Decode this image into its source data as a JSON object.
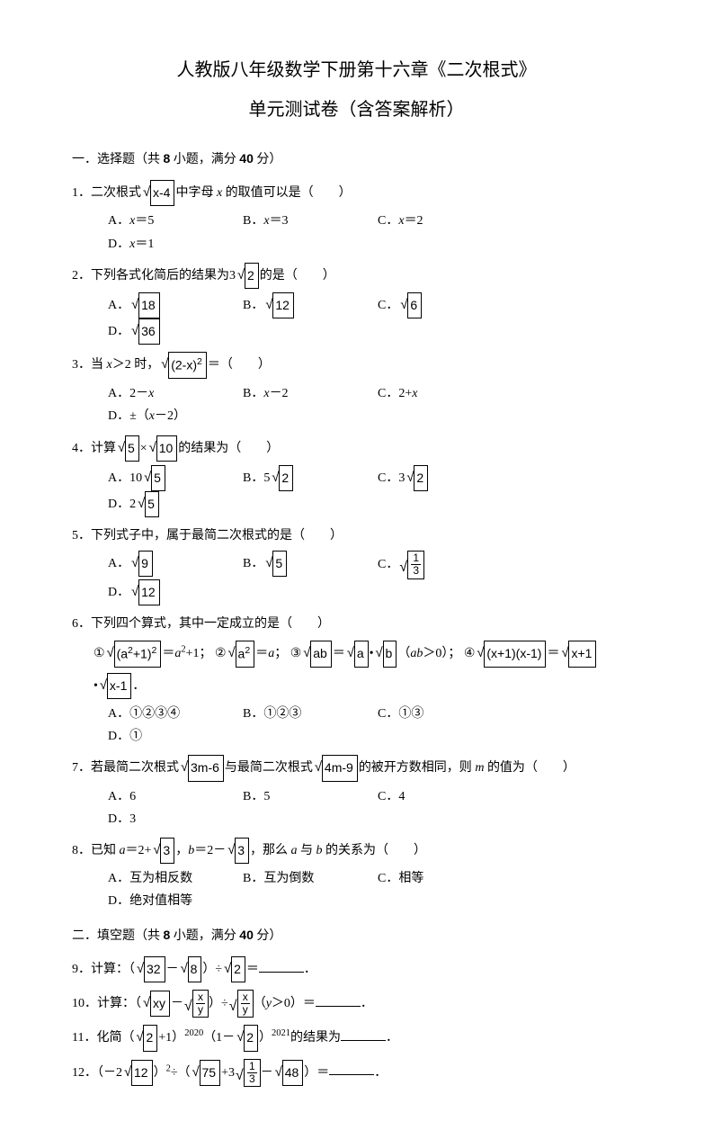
{
  "header": {
    "title": "人教版八年级数学下册第十六章《二次根式》",
    "subtitle": "单元测试卷（含答案解析）"
  },
  "section1": {
    "heading_prefix": "一．选择题（共 ",
    "heading_count1": "8",
    "heading_mid": " 小题，满分 ",
    "heading_count2": "40",
    "heading_suffix": " 分）"
  },
  "q1": {
    "num": "1．",
    "text_pre": "二次根式",
    "radical": "x-4",
    "text_mid": "中字母 ",
    "var": "x",
    "text_post": " 的取值可以是（　　）",
    "optA_pre": "A．",
    "optA_var": "x",
    "optA_post": "＝5",
    "optB_pre": "B．",
    "optB_var": "x",
    "optB_post": "＝3",
    "optC_pre": "C．",
    "optC_var": "x",
    "optC_post": "＝2",
    "optD_pre": "D．",
    "optD_var": "x",
    "optD_post": "＝1"
  },
  "q2": {
    "num": "2．",
    "text_pre": "下列各式化简后的结果为",
    "coef": "3",
    "radical": "2",
    "text_post": "的是（　　）",
    "optA": "A．",
    "radA": "18",
    "optB": "B．",
    "radB": "12",
    "optC": "C．",
    "radC": "6",
    "optD": "D．",
    "radD": "36"
  },
  "q3": {
    "num": "3．",
    "text_pre": "当 ",
    "var": "x",
    "text_mid": "＞2 时，",
    "radical": "(2-x)",
    "sup": "2",
    "text_post": "＝（　　）",
    "optA": "A．2－",
    "optA_var": "x",
    "optB": "B．",
    "optB_var": "x",
    "optB_post": "－2",
    "optC": "C．2+",
    "optC_var": "x",
    "optD": "D．±（",
    "optD_var": "x",
    "optD_post": "－2）"
  },
  "q4": {
    "num": "4．",
    "text_pre": "计算",
    "radA": "5",
    "times": "×",
    "radB": "10",
    "text_post": "的结果为（　　）",
    "optA": "A．10",
    "oradA": "5",
    "optB": "B．5",
    "oradB": "2",
    "optC": "C．3",
    "oradC": "2",
    "optD": "D．2",
    "oradD": "5"
  },
  "q5": {
    "num": "5．",
    "text": "下列式子中，属于最简二次根式的是（　　）",
    "optA": "A．",
    "radA": "9",
    "optB": "B．",
    "radB": "5",
    "optC": "C．",
    "fracN": "1",
    "fracD": "3",
    "optD": "D．",
    "radD": "12"
  },
  "q6": {
    "num": "6．",
    "text": "下列四个算式，其中一定成立的是（　　）",
    "c1": "①",
    "r1": "(a",
    "r1sup": "2",
    "r1post": "+1)",
    "r1osup": "2",
    "r1eq": "＝",
    "r1a": "a",
    "r1asup": "2",
    "r1end": "+1；",
    "c2": "②",
    "r2": "a",
    "r2sup": "2",
    "r2eq": "＝",
    "r2a": "a",
    "r2end": "；",
    "c3": "③",
    "r3a": "ab",
    "r3eq": "＝",
    "r3b": "a",
    "r3dot": "•",
    "r3c": "b",
    "r3par": "（",
    "r3ab": "ab",
    "r3cond": "＞0）；",
    "c4": "④",
    "r4a": "(x+1)(x-1)",
    "r4eq": "＝",
    "r4b": "x+1",
    "c4dot": "•",
    "r4c": "x-1",
    "c4end": "．",
    "optA": "A．①②③④",
    "optB": "B．①②③",
    "optC": "C．①③",
    "optD": "D．①"
  },
  "q7": {
    "num": "7．",
    "text_pre": "若最简二次根式",
    "radA": "3m-6",
    "text_mid": "与最简二次根式",
    "radB": "4m-9",
    "text_post1": "的被开方数相同，则 ",
    "var": "m",
    "text_post2": " 的值为（　　）",
    "optA": "A．6",
    "optB": "B．5",
    "optC": "C．4",
    "optD": "D．3"
  },
  "q8": {
    "num": "8．",
    "text_pre": "已知 ",
    "varA": "a",
    "text_a": "＝2+",
    "radA": "3",
    "text_sep": "，",
    "varB": "b",
    "text_b": "＝2－",
    "radB": "3",
    "text_mid": "，那么 ",
    "varA2": "a",
    "text_and": " 与 ",
    "varB2": "b",
    "text_post": " 的关系为（　　）",
    "optA": "A．互为相反数",
    "optB": "B．互为倒数",
    "optC": "C．相等",
    "optD": "D．绝对值相等"
  },
  "section2": {
    "heading_prefix": "二．填空题（共 ",
    "heading_count1": "8",
    "heading_mid": " 小题，满分 ",
    "heading_count2": "40",
    "heading_suffix": " 分）"
  },
  "q9": {
    "num": "9．",
    "text_pre": "计算：（",
    "radA": "32",
    "minus": "－",
    "radB": "8",
    "text_mid": "）÷",
    "radC": "2",
    "eq": "＝",
    "period": "．"
  },
  "q10": {
    "num": "10．",
    "text_pre": "计算：（",
    "radA": "xy",
    "minus": "－",
    "fracAn": "x",
    "fracAd": "y",
    "text_mid": "）÷",
    "fracBn": "x",
    "fracBd": "y",
    "text_par": "（",
    "var": "y",
    "cond": "＞0）＝",
    "period": "．"
  },
  "q11": {
    "num": "11．",
    "text_pre": "化简（",
    "radA": "2",
    "text_a": "+1）",
    "supA": "2020",
    "text_mid": "（1－",
    "radB": "2",
    "text_b": "）",
    "supB": "2021",
    "text_post": "的结果为",
    "period": "．"
  },
  "q12": {
    "num": "12．",
    "text_pre": "（－2",
    "radA": "12",
    "text_a": "）",
    "supA": "2",
    "text_mid": "÷（",
    "radB": "75",
    "plus": "+3",
    "fracN": "1",
    "fracD": "3",
    "minus": "－",
    "radC": "48",
    "text_post": "）＝",
    "period": "．"
  }
}
